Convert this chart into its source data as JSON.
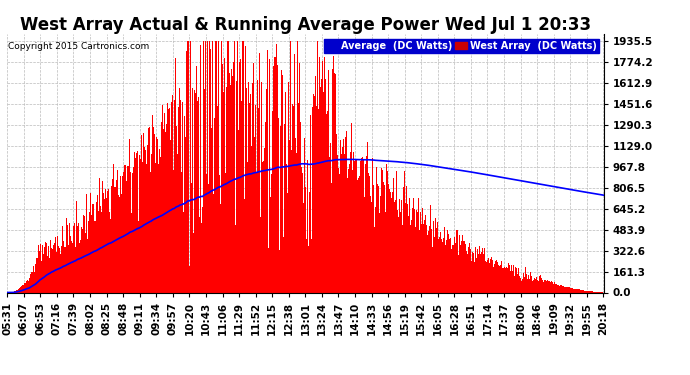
{
  "title": "West Array Actual & Running Average Power Wed Jul 1 20:33",
  "copyright": "Copyright 2015 Cartronics.com",
  "legend_labels": [
    "Average  (DC Watts)",
    "West Array  (DC Watts)"
  ],
  "yticks": [
    0.0,
    161.3,
    322.6,
    483.9,
    645.2,
    806.5,
    967.8,
    1129.0,
    1290.3,
    1451.6,
    1612.9,
    1774.2,
    1935.5
  ],
  "ylim": [
    0,
    1990
  ],
  "background_color": "#ffffff",
  "plot_bg": "#ffffff",
  "bar_color": "#ff0000",
  "line_color": "#0000ff",
  "grid_color": "#bbbbbb",
  "title_fontsize": 12,
  "tick_fontsize": 7.5,
  "x_tick_labels": [
    "05:31",
    "06:07",
    "06:53",
    "07:16",
    "07:39",
    "08:02",
    "08:25",
    "08:48",
    "09:11",
    "09:34",
    "09:57",
    "10:20",
    "10:43",
    "11:06",
    "11:29",
    "11:52",
    "12:15",
    "12:38",
    "13:01",
    "13:24",
    "13:47",
    "14:10",
    "14:33",
    "14:56",
    "15:19",
    "15:42",
    "16:05",
    "16:28",
    "16:51",
    "17:14",
    "17:37",
    "18:00",
    "18:46",
    "19:09",
    "19:32",
    "19:55",
    "20:18"
  ]
}
